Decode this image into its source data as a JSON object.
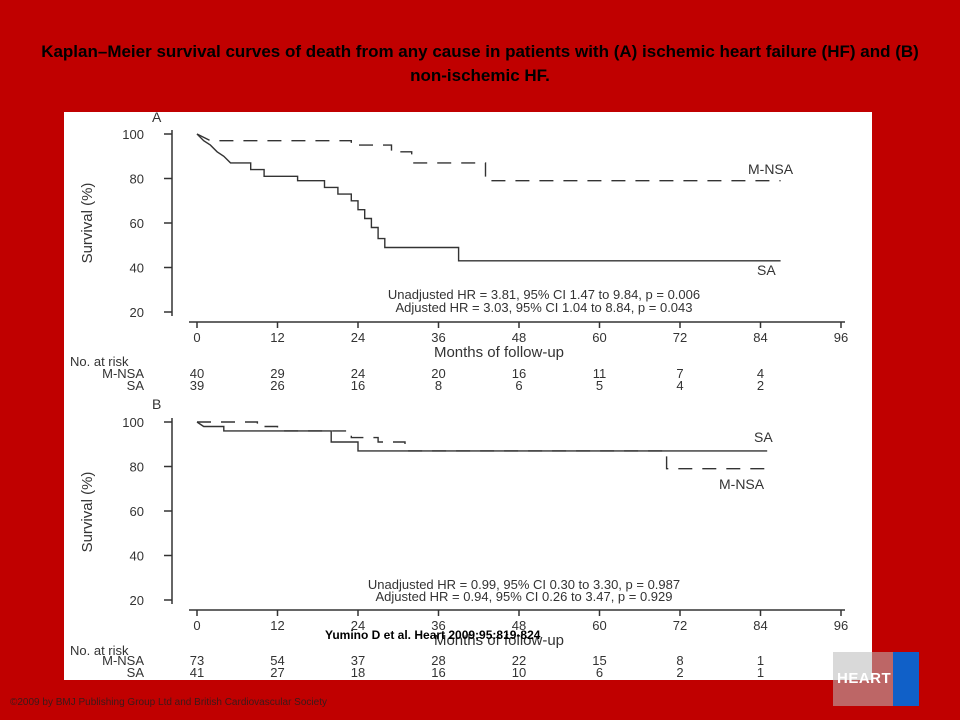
{
  "slide_title": "Kaplan–Meier survival curves of death from any cause in patients with (A) ischemic heart failure (HF) and (B) non-ischemic HF.",
  "citation": "Yumino D et al. Heart 2009;95:819-824",
  "copyright": "©2009 by BMJ Publishing Group Ltd and British Cardiovascular Society",
  "logo_text": "HEART",
  "colors": {
    "background": "#c00000",
    "panel": "#ffffff",
    "ink": "#333333",
    "logo_blue": "#1060c8"
  },
  "chart_data": [
    {
      "type": "line",
      "panel_label": "A",
      "title": "",
      "xlabel": "Months of follow-up",
      "ylabel": "Survival (%)",
      "xlim": [
        0,
        96
      ],
      "ylim": [
        20,
        100
      ],
      "xticks": [
        0,
        12,
        24,
        36,
        48,
        60,
        72,
        84,
        96
      ],
      "yticks": [
        20,
        40,
        60,
        80,
        100
      ],
      "grid": false,
      "legend": "curve labels at right end of lines",
      "series": [
        {
          "name": "M-NSA",
          "style": "dashed",
          "points": [
            [
              0,
              100
            ],
            [
              2,
              97
            ],
            [
              23,
              97
            ],
            [
              23,
              95
            ],
            [
              29,
              95
            ],
            [
              29,
              92
            ],
            [
              32,
              92
            ],
            [
              32,
              87
            ],
            [
              43,
              87
            ],
            [
              43,
              79
            ],
            [
              87,
              79
            ]
          ]
        },
        {
          "name": "SA",
          "style": "solid",
          "points": [
            [
              0,
              100
            ],
            [
              1,
              97
            ],
            [
              2,
              95
            ],
            [
              3,
              92
            ],
            [
              4,
              90
            ],
            [
              5,
              87
            ],
            [
              8,
              87
            ],
            [
              8,
              84
            ],
            [
              10,
              84
            ],
            [
              10,
              81
            ],
            [
              15,
              81
            ],
            [
              15,
              79
            ],
            [
              19,
              79
            ],
            [
              19,
              76
            ],
            [
              21,
              76
            ],
            [
              21,
              73
            ],
            [
              23,
              73
            ],
            [
              23,
              70
            ],
            [
              24,
              70
            ],
            [
              24,
              66
            ],
            [
              25,
              66
            ],
            [
              25,
              62
            ],
            [
              26,
              62
            ],
            [
              26,
              58
            ],
            [
              27,
              58
            ],
            [
              27,
              53
            ],
            [
              28,
              53
            ],
            [
              28,
              49
            ],
            [
              39,
              49
            ],
            [
              39,
              43
            ],
            [
              87,
              43
            ]
          ]
        }
      ],
      "annotations": [
        "Unadjusted HR = 3.81, 95% CI 1.47 to 9.84, p = 0.006",
        "Adjusted HR = 3.03, 95% CI 1.04 to 8.84, p = 0.043"
      ],
      "risk_table": {
        "header": "No. at risk",
        "rows": [
          {
            "label": "M-NSA",
            "values": [
              40,
              29,
              24,
              20,
              16,
              11,
              7,
              4
            ]
          },
          {
            "label": "SA",
            "values": [
              39,
              26,
              16,
              8,
              6,
              5,
              4,
              2
            ]
          }
        ]
      }
    },
    {
      "type": "line",
      "panel_label": "B",
      "title": "",
      "xlabel": "Months of follow-up",
      "ylabel": "Survival (%)",
      "xlim": [
        0,
        96
      ],
      "ylim": [
        20,
        100
      ],
      "xticks": [
        0,
        12,
        24,
        36,
        48,
        60,
        72,
        84,
        96
      ],
      "yticks": [
        20,
        40,
        60,
        80,
        100
      ],
      "grid": false,
      "legend": "curve labels at right end of lines",
      "series": [
        {
          "name": "SA",
          "style": "solid",
          "points": [
            [
              0,
              100
            ],
            [
              1,
              98
            ],
            [
              4,
              98
            ],
            [
              4,
              96
            ],
            [
              20,
              96
            ],
            [
              20,
              91
            ],
            [
              24,
              91
            ],
            [
              24,
              87
            ],
            [
              85,
              87
            ]
          ]
        },
        {
          "name": "M-NSA",
          "style": "dashed",
          "points": [
            [
              0,
              100
            ],
            [
              9,
              100
            ],
            [
              9,
              98
            ],
            [
              12,
              98
            ],
            [
              12,
              96
            ],
            [
              23,
              96
            ],
            [
              23,
              93
            ],
            [
              27,
              93
            ],
            [
              27,
              91
            ],
            [
              31,
              91
            ],
            [
              31,
              87
            ],
            [
              70,
              87
            ],
            [
              70,
              79
            ],
            [
              85,
              79
            ]
          ]
        }
      ],
      "annotations": [
        "Unadjusted HR = 0.99, 95% CI 0.30 to 3.30, p = 0.987",
        "Adjusted HR = 0.94, 95% CI 0.26 to 3.47, p = 0.929"
      ],
      "risk_table": {
        "header": "No. at risk",
        "rows": [
          {
            "label": "M-NSA",
            "values": [
              73,
              54,
              37,
              28,
              22,
              15,
              8,
              1
            ]
          },
          {
            "label": "SA",
            "values": [
              41,
              27,
              18,
              16,
              10,
              6,
              2,
              1
            ]
          }
        ]
      }
    }
  ]
}
